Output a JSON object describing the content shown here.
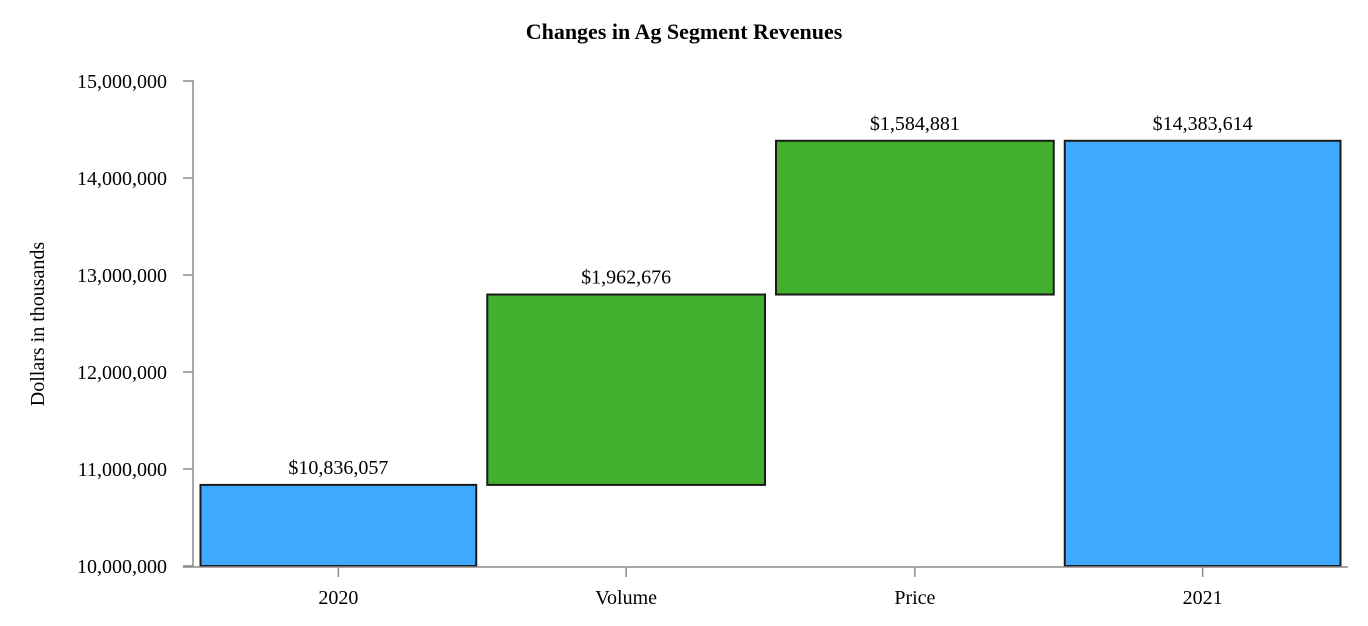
{
  "chart_data": {
    "type": "bar",
    "subtype": "waterfall",
    "title": "Changes in Ag Segment Revenues",
    "xlabel": "",
    "ylabel": "Dollars in thousands",
    "ylim": [
      10000000,
      15000000
    ],
    "yticks": [
      10000000,
      11000000,
      12000000,
      13000000,
      14000000,
      15000000
    ],
    "ytick_labels": [
      "10,000,000",
      "11,000,000",
      "12,000,000",
      "13,000,000",
      "14,000,000",
      "15,000,000"
    ],
    "categories": [
      "2020",
      "Volume",
      "Price",
      "2021"
    ],
    "values": [
      10836057,
      1962676,
      1584881,
      14383614
    ],
    "bar_kinds": [
      "total",
      "increase",
      "increase",
      "total"
    ],
    "data_labels": [
      "$10,836,057",
      "$1,962,676",
      "$1,584,881",
      "$14,383,614"
    ],
    "grid": false,
    "legend": "none",
    "colors": {
      "total": "#3fa9ff",
      "increase": "#42b02c",
      "bar_outline": "#1a1a1a",
      "axis": "#8c8c8c"
    }
  }
}
